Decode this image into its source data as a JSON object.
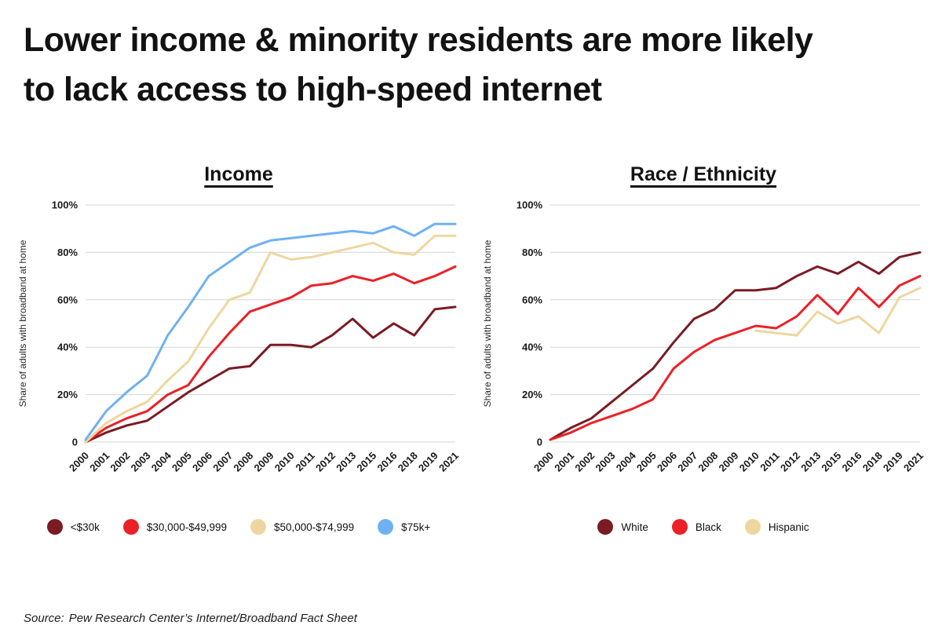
{
  "title": {
    "line1": "Lower income & minority residents are more likely",
    "line2": "to lack access to high-speed internet"
  },
  "source": {
    "label": "Source:",
    "text": "Pew Research Center’s Internet/Broadband Fact Sheet"
  },
  "chart_data": [
    {
      "type": "line",
      "title": "Income",
      "ylabel": "Share of adults with broadband at home",
      "ylim": [
        0,
        100
      ],
      "ytick_values": [
        0,
        20,
        40,
        60,
        80,
        100
      ],
      "ytick_labels": [
        "0",
        "20%",
        "40%",
        "60%",
        "80%",
        "100%"
      ],
      "grid": true,
      "legend_position": "bottom",
      "categories": [
        "2000",
        "2001",
        "2002",
        "2003",
        "2004",
        "2005",
        "2006",
        "2007",
        "2008",
        "2009",
        "2010",
        "2011",
        "2012",
        "2013",
        "2015",
        "2016",
        "2018",
        "2019",
        "2021"
      ],
      "series": [
        {
          "name": "<$30k",
          "color": "#7B1B22",
          "values": [
            0,
            4,
            7,
            9,
            15,
            21,
            26,
            31,
            32,
            41,
            41,
            40,
            45,
            52,
            44,
            50,
            45,
            56,
            57
          ]
        },
        {
          "name": "$30,000-$49,999",
          "color": "#EC2027",
          "values": [
            0,
            6,
            10,
            13,
            20,
            24,
            36,
            46,
            55,
            58,
            61,
            66,
            67,
            70,
            68,
            71,
            67,
            70,
            74
          ]
        },
        {
          "name": "$50,000-$74,999",
          "color": "#EDD79F",
          "values": [
            0,
            8,
            13,
            17,
            26,
            34,
            48,
            60,
            63,
            80,
            77,
            78,
            80,
            82,
            84,
            80,
            79,
            87,
            87
          ]
        },
        {
          "name": "$75k+",
          "color": "#6FB1F2",
          "values": [
            1,
            13,
            21,
            28,
            45,
            57,
            70,
            76,
            82,
            85,
            86,
            87,
            88,
            89,
            88,
            91,
            87,
            92,
            92
          ]
        }
      ]
    },
    {
      "type": "line",
      "title": "Race / Ethnicity",
      "ylabel": "Share of adults with broadband at home",
      "ylim": [
        0,
        100
      ],
      "ytick_values": [
        0,
        20,
        40,
        60,
        80,
        100
      ],
      "ytick_labels": [
        "0",
        "20%",
        "40%",
        "60%",
        "80%",
        "100%"
      ],
      "grid": true,
      "legend_position": "bottom",
      "categories": [
        "2000",
        "2001",
        "2002",
        "2003",
        "2004",
        "2005",
        "2006",
        "2007",
        "2008",
        "2009",
        "2010",
        "2011",
        "2012",
        "2013",
        "2015",
        "2016",
        "2018",
        "2019",
        "2021"
      ],
      "series": [
        {
          "name": "White",
          "color": "#7B1B22",
          "values": [
            1,
            6,
            10,
            17,
            24,
            31,
            42,
            52,
            56,
            64,
            64,
            65,
            70,
            74,
            71,
            76,
            71,
            78,
            80
          ]
        },
        {
          "name": "Black",
          "color": "#EC2027",
          "values": [
            1,
            4,
            8,
            11,
            14,
            18,
            31,
            38,
            43,
            46,
            49,
            48,
            53,
            62,
            54,
            65,
            57,
            66,
            70
          ]
        },
        {
          "name": "Hispanic",
          "color": "#EDD79F",
          "values": [
            null,
            null,
            null,
            null,
            null,
            null,
            null,
            null,
            null,
            null,
            47,
            46,
            45,
            55,
            50,
            53,
            46,
            61,
            65
          ]
        }
      ]
    }
  ]
}
